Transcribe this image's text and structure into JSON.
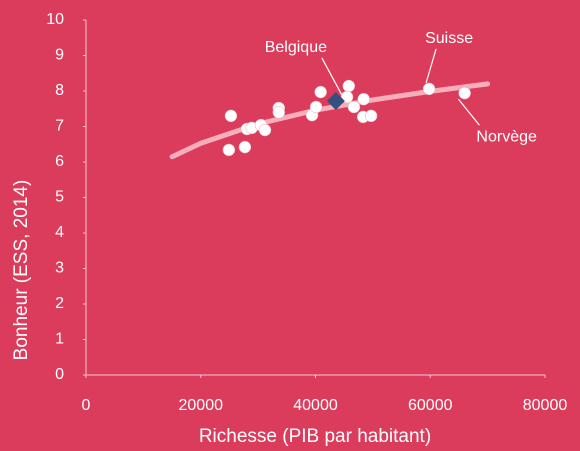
{
  "chart_data": {
    "type": "scatter",
    "xlabel": "Richesse (PIB par habitant)",
    "ylabel": "Bonheur (ESS, 2014)",
    "xlim": [
      0,
      80000
    ],
    "xticks": [
      0,
      20000,
      40000,
      60000,
      80000
    ],
    "ylim": [
      0,
      10
    ],
    "yticks": [
      0,
      1,
      2,
      3,
      4,
      5,
      6,
      7,
      8,
      9,
      10
    ],
    "series": [
      {
        "color": "#ffffff",
        "marker": "circle",
        "x": [
          25260,
          24900,
          27700,
          28050,
          28900,
          30500,
          31200,
          33600,
          33600,
          39400,
          40100,
          40900,
          45800,
          45500,
          46700,
          48400,
          48300,
          49700,
          59800,
          66000
        ],
        "values": [
          7.3,
          6.34,
          6.42,
          6.93,
          6.96,
          7.04,
          6.9,
          7.52,
          7.4,
          7.32,
          7.55,
          7.97,
          8.14,
          7.83,
          7.55,
          7.77,
          7.27,
          7.3,
          8.06,
          7.94
        ]
      },
      {
        "color": "#34507e",
        "marker": "diamond",
        "x": [
          43550
        ],
        "values": [
          7.72
        ]
      },
      {
        "color": "#f7aebb",
        "marker": "line",
        "x": [
          15000,
          20000,
          30000,
          40000,
          50000,
          60000,
          70000
        ],
        "values": [
          6.15,
          6.53,
          7.07,
          7.46,
          7.75,
          7.99,
          8.2
        ]
      }
    ],
    "annotations": [
      {
        "text": "Belgique",
        "x": 43550,
        "y": 7.72
      },
      {
        "text": "Suisse",
        "x": 59800,
        "y": 8.06
      },
      {
        "text": "Norvège",
        "x": 66000,
        "y": 7.94
      }
    ]
  }
}
